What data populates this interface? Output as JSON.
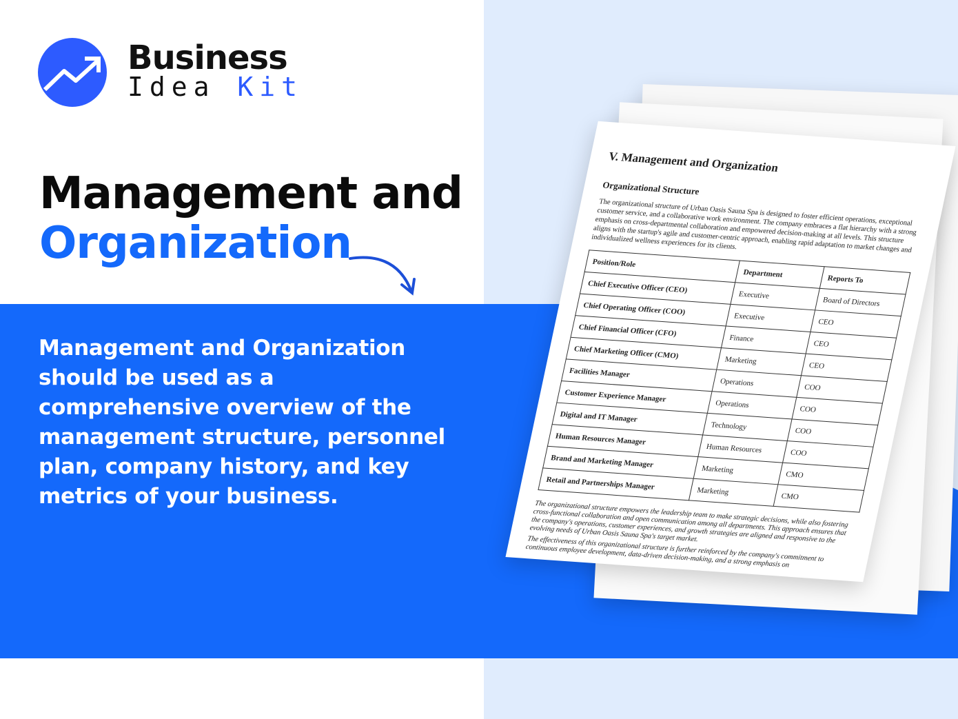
{
  "logo": {
    "line1": "Business",
    "line2a": "Idea",
    "line2b": "Kit"
  },
  "headline": {
    "line1": "Management and",
    "line2": "Organization"
  },
  "description": "Management and Organization should be used as a comprehensive overview of the management structure, personnel plan, company history, and key metrics of your business.",
  "colors": {
    "accent": "#1469fb",
    "right_bg": "#e0ecfd"
  },
  "document": {
    "title": "V. Management and Organization",
    "subtitle": "Organizational Structure",
    "paragraph": "The organizational structure of Urban Oasis Sauna Spa is designed to foster efficient operations, exceptional customer service, and a collaborative work environment. The company embraces a flat hierarchy with a strong emphasis on cross-departmental collaboration and empowered decision-making at all levels. This structure aligns with the startup's agile and customer-centric approach, enabling rapid adaptation to market changes and individualized wellness experiences for its clients.",
    "headers": [
      "Position/Role",
      "Department",
      "Reports To"
    ],
    "rows": [
      [
        "Chief Executive Officer (CEO)",
        "Executive",
        "Board of Directors"
      ],
      [
        "Chief Operating Officer (COO)",
        "Executive",
        "CEO"
      ],
      [
        "Chief Financial Officer (CFO)",
        "Finance",
        "CEO"
      ],
      [
        "Chief Marketing Officer (CMO)",
        "Marketing",
        "CEO"
      ],
      [
        "Facilities Manager",
        "Operations",
        "COO"
      ],
      [
        "Customer Experience Manager",
        "Operations",
        "COO"
      ],
      [
        "Digital and IT Manager",
        "Technology",
        "COO"
      ],
      [
        "Human Resources Manager",
        "Human Resources",
        "COO"
      ],
      [
        "Brand and Marketing Manager",
        "Marketing",
        "CMO"
      ],
      [
        "Retail and Partnerships Manager",
        "Marketing",
        "CMO"
      ]
    ],
    "paragraph2": "The organizational structure empowers the leadership team to make strategic decisions, while also fostering cross-functional collaboration and open communication among all departments. This approach ensures that the company's operations, customer experiences, and growth strategies are aligned and responsive to the evolving needs of Urban Oasis Sauna Spa's target market.",
    "paragraph3": "The effectiveness of this organizational structure is further reinforced by the company's commitment to continuous employee development, data-driven decision-making, and a strong emphasis on"
  }
}
